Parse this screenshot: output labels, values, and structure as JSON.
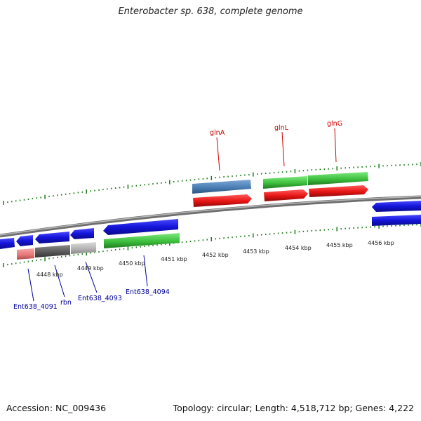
{
  "title": "Enterobacter sp. 638, complete genome",
  "footer": {
    "accession": "Accession: NC_009436",
    "topology": "Topology: circular; Length: 4,518,712 bp; Genes: 4,222"
  },
  "colors": {
    "blue_gene": "#1414d9",
    "steel_gene": "#4a7fb5",
    "green_gene": "#3cbf3c",
    "red_gene": "#e61414",
    "pink_gene": "#e87a7a",
    "dark_gene": "#5a5a5a",
    "light_gene": "#b4b4b4",
    "tick_green": "#1a7a1a",
    "backbone": "#8a8a8a",
    "label_red": "#cc0000",
    "label_blue": "#000099"
  },
  "kbp_labels": [
    "4448 kbp",
    "4449 kbp",
    "4450 kbp",
    "4451 kbp",
    "4452 kbp",
    "4453 kbp",
    "4454 kbp",
    "4455 kbp",
    "4456 kbp"
  ],
  "top_gene_labels": [
    "glnA",
    "glnL",
    "glnG"
  ],
  "bottom_gene_labels": [
    "Ent638_4091",
    "rbn",
    "Ent638_4093",
    "Ent638_4094"
  ]
}
